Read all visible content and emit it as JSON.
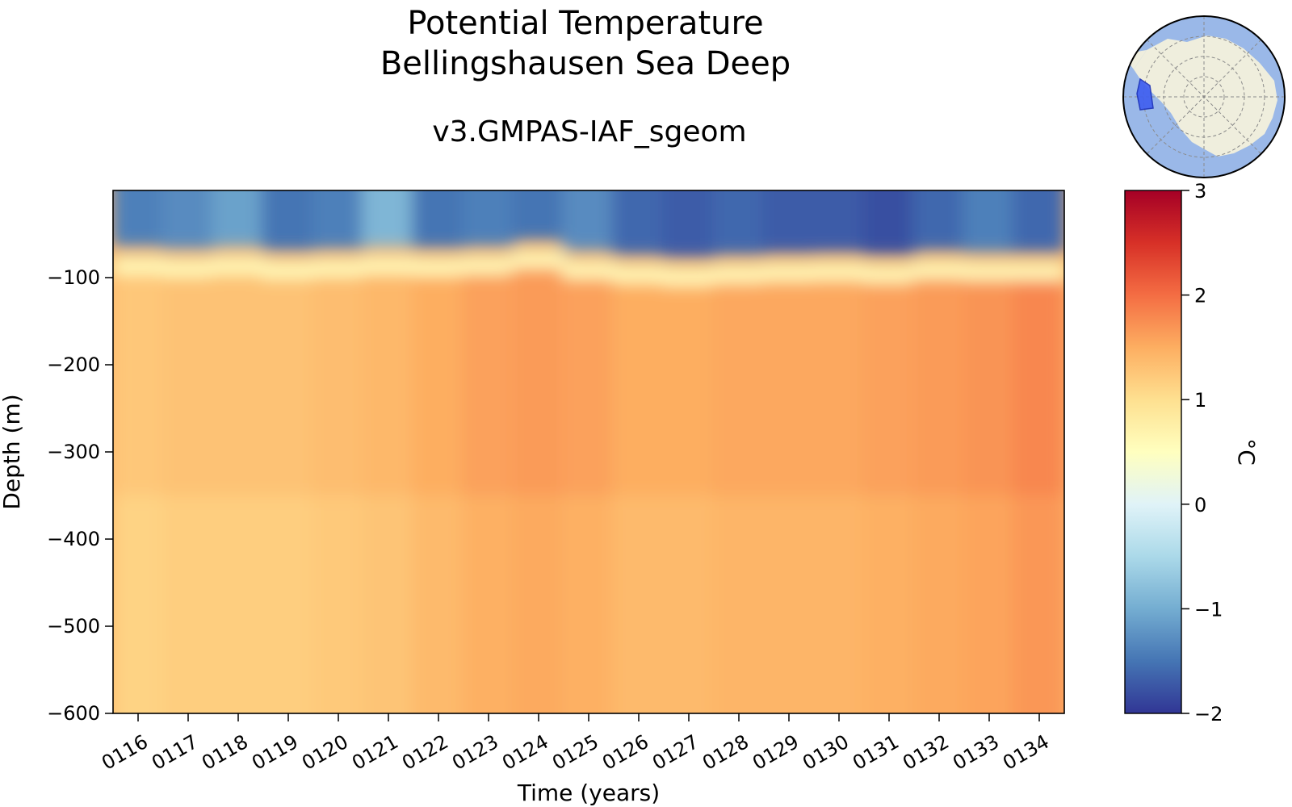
{
  "chart_data": {
    "type": "heatmap",
    "title": "Potential Temperature",
    "region": "Bellingshausen Sea Deep",
    "subtitle": "v3.GMPAS-IAF_sgeom",
    "xlabel": "Time (years)",
    "ylabel": "Depth (m)",
    "x_ticks": [
      "0116",
      "0117",
      "0118",
      "0119",
      "0120",
      "0121",
      "0122",
      "0123",
      "0124",
      "0125",
      "0126",
      "0127",
      "0128",
      "0129",
      "0130",
      "0131",
      "0132",
      "0133",
      "0134"
    ],
    "y_ticks": [
      -100,
      -200,
      -300,
      -400,
      -500,
      -600
    ],
    "y_tick_labels": [
      "−100",
      "−200",
      "−300",
      "−400",
      "−500",
      "−600"
    ],
    "ylim": [
      -600,
      0
    ],
    "colorbar": {
      "label": "°C",
      "range": [
        -2,
        3
      ],
      "ticks": [
        -2,
        -1,
        0,
        1,
        2,
        3
      ],
      "tick_labels": [
        "−2",
        "−1",
        "0",
        "1",
        "2",
        "3"
      ],
      "colormap": "RdYlBu_r"
    },
    "surface_layer_temp_by_year": [
      -1.4,
      -1.3,
      -1.1,
      -1.5,
      -1.4,
      -0.9,
      -1.5,
      -1.4,
      -1.5,
      -1.3,
      -1.6,
      -1.7,
      -1.6,
      -1.7,
      -1.7,
      -1.8,
      -1.6,
      -1.4,
      -1.6
    ],
    "thermocline_depth_by_year": [
      -85,
      -88,
      -85,
      -90,
      -88,
      -85,
      -87,
      -85,
      -78,
      -90,
      -95,
      -98,
      -95,
      -93,
      -92,
      -95,
      -90,
      -92,
      -92
    ],
    "deep_layer_temp_by_year": [
      1.25,
      1.3,
      1.3,
      1.3,
      1.35,
      1.4,
      1.5,
      1.6,
      1.65,
      1.6,
      1.5,
      1.5,
      1.55,
      1.55,
      1.55,
      1.6,
      1.65,
      1.7,
      1.8
    ]
  },
  "inset_map": {
    "name": "antarctic-region-map"
  }
}
